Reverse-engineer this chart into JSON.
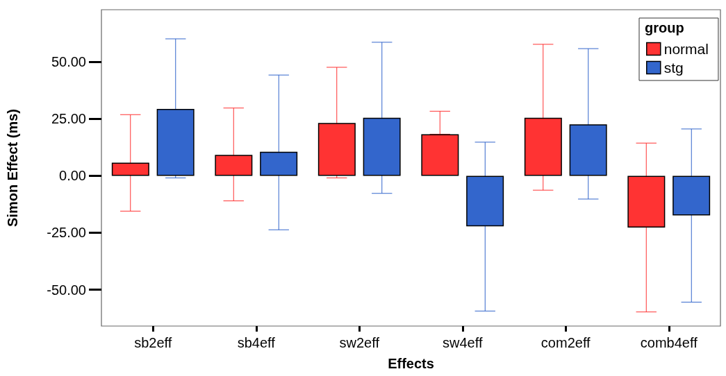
{
  "chart_data": {
    "type": "bar",
    "xlabel": "Effects",
    "ylabel": "Simon Effect (ms)",
    "legend_title": "group",
    "legend": "top right",
    "grid": false,
    "categories": [
      "sb2eff",
      "sb4eff",
      "sw2eff",
      "sw4eff",
      "com2eff",
      "comb4eff"
    ],
    "ylim": [
      -66,
      73
    ],
    "yticks": [
      {
        "value": -50,
        "label": "-50.00"
      },
      {
        "value": -25,
        "label": "-25.00"
      },
      {
        "value": 0,
        "label": "0.00"
      },
      {
        "value": 25,
        "label": "25.00"
      },
      {
        "value": 50,
        "label": "50.00"
      }
    ],
    "series": [
      {
        "name": "normal",
        "color": "#ff3333",
        "values": [
          5.8,
          9.2,
          23.2,
          18.3,
          25.5,
          -22.7
        ],
        "errors": [
          [
            -15.5,
            26.9
          ],
          [
            -11,
            29.8
          ],
          [
            -0.9,
            47.7
          ],
          [
            18.3,
            28.4
          ],
          [
            -6.3,
            57.8
          ],
          [
            -59.8,
            14.4
          ]
        ]
      },
      {
        "name": "stg",
        "color": "#3366cc",
        "values": [
          29.4,
          10.6,
          25.5,
          -22.2,
          22.6,
          -17.4
        ],
        "errors": [
          [
            -0.9,
            60.2
          ],
          [
            -23.7,
            44.3
          ],
          [
            -7.7,
            58.7
          ],
          [
            -59.4,
            14.8
          ],
          [
            -10.2,
            55.9
          ],
          [
            -55.5,
            20.6
          ]
        ]
      }
    ]
  }
}
